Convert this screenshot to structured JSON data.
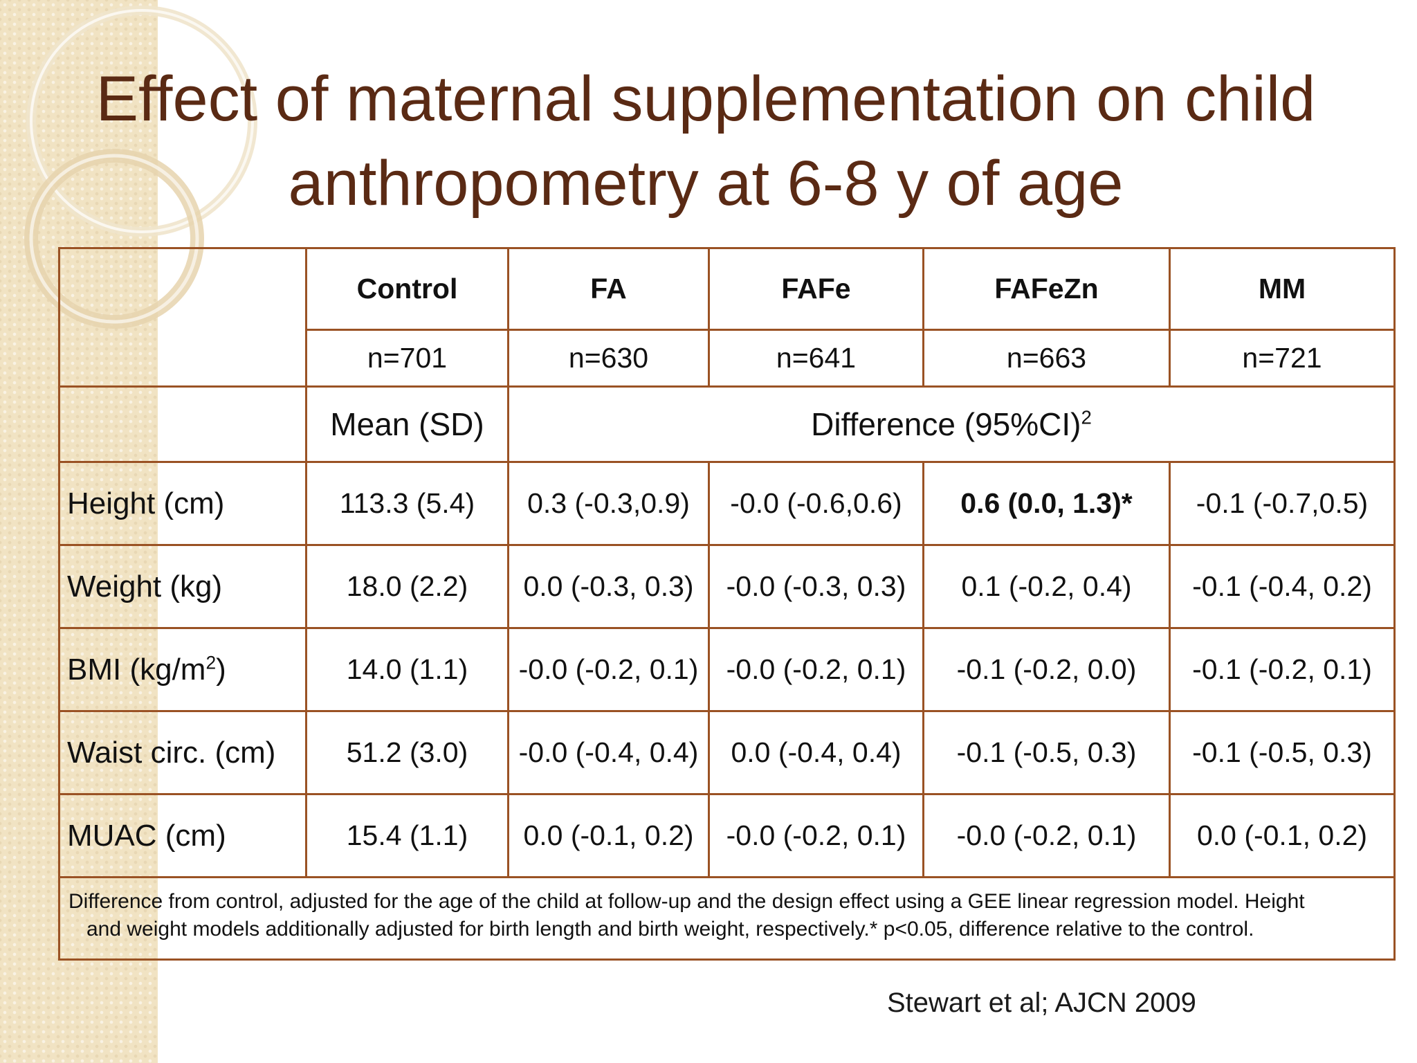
{
  "slide": {
    "title_line1": "Effect of maternal supplementation on child",
    "title_line2": "anthropometry at 6-8 y of age"
  },
  "table": {
    "columns": [
      "Control",
      "FA",
      "FAFe",
      "FAFeZn",
      "MM"
    ],
    "n": [
      "n=701",
      "n=630",
      "n=641",
      "n=663",
      "n=721"
    ],
    "mean_label": "Mean (SD)",
    "diff_label": "Difference (95%CI)",
    "diff_sup": "2",
    "rows": [
      {
        "label": "Height (cm)",
        "label_sup": "",
        "label_end": "",
        "values": [
          "113.3 (5.4)",
          "0.3 (-0.3,0.9)",
          "-0.0 (-0.6,0.6)",
          "0.6 (0.0, 1.3)*",
          "-0.1 (-0.7,0.5)"
        ]
      },
      {
        "label": "Weight (kg)",
        "label_sup": "",
        "label_end": "",
        "values": [
          "18.0 (2.2)",
          "0.0 (-0.3, 0.3)",
          "-0.0 (-0.3, 0.3)",
          "0.1 (-0.2, 0.4)",
          "-0.1 (-0.4, 0.2)"
        ]
      },
      {
        "label": "BMI (kg/m",
        "label_sup": "2",
        "label_end": ")",
        "values": [
          "14.0 (1.1)",
          "-0.0 (-0.2, 0.1)",
          "-0.0 (-0.2, 0.1)",
          "-0.1 (-0.2, 0.0)",
          "-0.1 (-0.2, 0.1)"
        ]
      },
      {
        "label": "Waist circ. (cm)",
        "label_sup": "",
        "label_end": "",
        "values": [
          "51.2 (3.0)",
          "-0.0 (-0.4, 0.4)",
          "0.0 (-0.4, 0.4)",
          "-0.1 (-0.5, 0.3)",
          "-0.1 (-0.5, 0.3)"
        ]
      },
      {
        "label": "MUAC (cm)",
        "label_sup": "",
        "label_end": "",
        "values": [
          "15.4 (1.1)",
          "0.0 (-0.1, 0.2)",
          "-0.0 (-0.2, 0.1)",
          "-0.0 (-0.2, 0.1)",
          "0.0 (-0.1, 0.2)"
        ]
      }
    ],
    "footnote_line1": "Difference from control, adjusted for the age of the child at follow-up and the design effect using a GEE linear regression model. Height",
    "footnote_line2": "and weight models additionally adjusted for birth length and birth weight, respectively.* p<0.05, difference relative to the control."
  },
  "citation": "Stewart et al;  AJCN 2009"
}
